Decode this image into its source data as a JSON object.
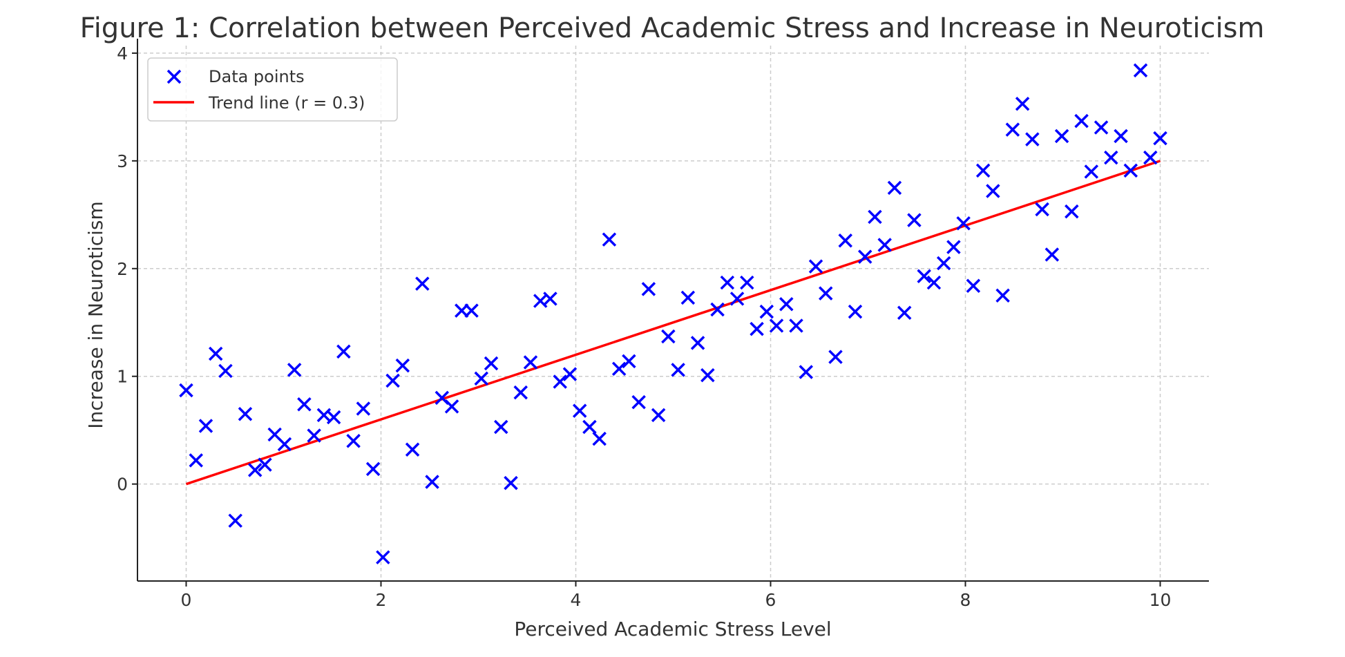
{
  "chart_data": {
    "type": "scatter",
    "title": "Figure 1: Correlation between Perceived Academic Stress and Increase in Neuroticism",
    "xlabel": "Perceived Academic Stress Level",
    "ylabel": "Increase in Neuroticism",
    "xlim": [
      -0.5,
      10.5
    ],
    "ylim": [
      -0.9,
      4.07
    ],
    "xticks": [
      0,
      2,
      4,
      6,
      8,
      10
    ],
    "yticks": [
      0,
      1,
      2,
      3,
      4
    ],
    "grid": true,
    "legend_position": "top-left",
    "series": [
      {
        "name": "Data points",
        "kind": "scatter",
        "marker": "x",
        "color": "#0000ff",
        "x_range": [
          0,
          10
        ],
        "y": [
          0.87,
          0.22,
          0.54,
          1.21,
          1.05,
          -0.34,
          0.65,
          0.13,
          0.18,
          0.46,
          0.37,
          1.06,
          0.74,
          0.45,
          0.64,
          0.62,
          1.23,
          0.4,
          0.7,
          0.14,
          -0.68,
          0.96,
          1.1,
          0.32,
          1.86,
          0.02,
          0.8,
          0.72,
          1.61,
          1.61,
          0.98,
          1.12,
          0.53,
          0.01,
          0.85,
          1.13,
          1.7,
          1.72,
          0.95,
          1.02,
          0.68,
          0.53,
          0.42,
          2.27,
          1.07,
          1.14,
          0.76,
          1.81,
          0.64,
          1.37,
          1.06,
          1.73,
          1.31,
          1.01,
          1.62,
          1.87,
          1.72,
          1.87,
          1.44,
          1.6,
          1.47,
          1.67,
          1.47,
          1.04,
          2.02,
          1.77,
          1.18,
          2.26,
          1.6,
          2.11,
          2.48,
          2.22,
          2.75,
          1.59,
          2.45,
          1.93,
          1.87,
          2.05,
          2.2,
          2.42,
          1.84,
          2.91,
          2.72,
          1.75,
          3.29,
          3.53,
          3.2,
          2.55,
          2.13,
          3.23,
          2.53,
          3.37,
          2.9,
          3.31,
          3.03,
          3.23,
          2.91,
          3.84,
          3.03,
          3.21
        ]
      },
      {
        "name": "Trend line (r = 0.3)",
        "kind": "line",
        "color": "#ff0000",
        "x": [
          0,
          10
        ],
        "y": [
          0,
          3
        ]
      }
    ]
  }
}
